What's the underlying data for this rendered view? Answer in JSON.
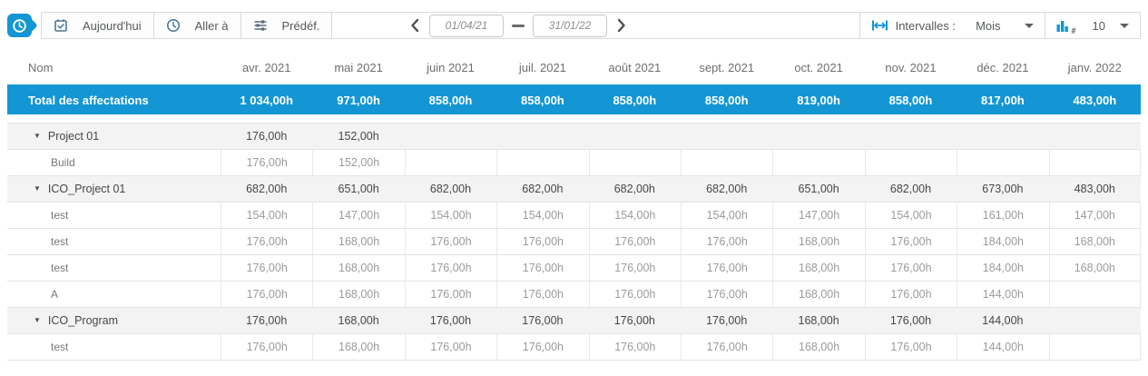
{
  "colors": {
    "accent": "#1396d3",
    "icon_slate": "#4d7795"
  },
  "toolbar": {
    "today_label": "Aujourd'hui",
    "goto_label": "Aller à",
    "predef_label": "Prédéf.",
    "date_from": "01/04/21",
    "date_to": "31/01/22",
    "intervals_label": "Intervalles :",
    "interval_value": "Mois",
    "count_value": "10"
  },
  "table": {
    "name_header": "Nom",
    "months": [
      "avr. 2021",
      "mai 2021",
      "juin 2021",
      "juil. 2021",
      "août 2021",
      "sept. 2021",
      "oct. 2021",
      "nov. 2021",
      "déc. 2021",
      "janv. 2022"
    ],
    "total_row": {
      "label": "Total des affectations",
      "values": [
        "1 034,00h",
        "971,00h",
        "858,00h",
        "858,00h",
        "858,00h",
        "858,00h",
        "819,00h",
        "858,00h",
        "817,00h",
        "483,00h"
      ]
    },
    "rows": [
      {
        "label": "Project 01",
        "type": "group",
        "values": [
          "176,00h",
          "152,00h",
          "",
          "",
          "",
          "",
          "",
          "",
          "",
          ""
        ]
      },
      {
        "label": "Build",
        "type": "child",
        "values": [
          "176,00h",
          "152,00h",
          "",
          "",
          "",
          "",
          "",
          "",
          "",
          ""
        ]
      },
      {
        "label": "ICO_Project 01",
        "type": "group",
        "values": [
          "682,00h",
          "651,00h",
          "682,00h",
          "682,00h",
          "682,00h",
          "682,00h",
          "651,00h",
          "682,00h",
          "673,00h",
          "483,00h"
        ]
      },
      {
        "label": "test",
        "type": "child",
        "values": [
          "154,00h",
          "147,00h",
          "154,00h",
          "154,00h",
          "154,00h",
          "154,00h",
          "147,00h",
          "154,00h",
          "161,00h",
          "147,00h"
        ]
      },
      {
        "label": "test",
        "type": "child",
        "values": [
          "176,00h",
          "168,00h",
          "176,00h",
          "176,00h",
          "176,00h",
          "176,00h",
          "168,00h",
          "176,00h",
          "184,00h",
          "168,00h"
        ]
      },
      {
        "label": "test",
        "type": "child",
        "values": [
          "176,00h",
          "168,00h",
          "176,00h",
          "176,00h",
          "176,00h",
          "176,00h",
          "168,00h",
          "176,00h",
          "184,00h",
          "168,00h"
        ]
      },
      {
        "label": "A",
        "type": "child",
        "values": [
          "176,00h",
          "168,00h",
          "176,00h",
          "176,00h",
          "176,00h",
          "176,00h",
          "168,00h",
          "176,00h",
          "144,00h",
          ""
        ]
      },
      {
        "label": "ICO_Program",
        "type": "group",
        "values": [
          "176,00h",
          "168,00h",
          "176,00h",
          "176,00h",
          "176,00h",
          "176,00h",
          "168,00h",
          "176,00h",
          "144,00h",
          ""
        ]
      },
      {
        "label": "test",
        "type": "child",
        "values": [
          "176,00h",
          "168,00h",
          "176,00h",
          "176,00h",
          "176,00h",
          "176,00h",
          "168,00h",
          "176,00h",
          "144,00h",
          ""
        ]
      }
    ]
  }
}
